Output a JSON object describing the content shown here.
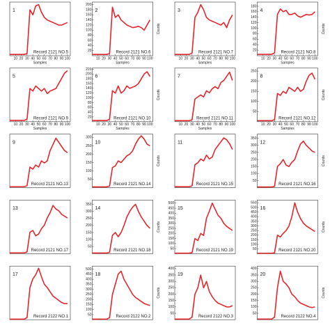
{
  "chart_data": [
    {
      "type": "line",
      "label": "1",
      "annotation": "Record 2121 NO.5",
      "xlabel": "Samples",
      "color": "#e3262b",
      "xlim": [
        0,
        105
      ],
      "xticks": [
        10,
        20,
        30,
        40,
        50,
        60,
        70,
        80,
        90,
        100
      ],
      "ylim": [
        0,
        210
      ],
      "x": [
        0,
        5,
        10,
        15,
        20,
        25,
        30,
        35,
        40,
        45,
        50,
        55,
        60,
        65,
        70,
        75,
        80,
        85,
        90,
        95,
        100
      ],
      "values": [
        5,
        5,
        5,
        5,
        5,
        5,
        8,
        180,
        160,
        195,
        200,
        170,
        150,
        140,
        135,
        130,
        125,
        120,
        120,
        125,
        130
      ]
    },
    {
      "type": "line",
      "label": "2",
      "annotation": "Record 2121 NO.6",
      "xlabel": "Samples",
      "ylabel": "Counts",
      "color": "#e3262b",
      "xlim": [
        0,
        105
      ],
      "xticks": [
        10,
        20,
        30,
        40,
        50,
        60,
        70,
        80,
        90,
        100
      ],
      "ylim": [
        0,
        210
      ],
      "yticks": [
        20,
        40,
        60,
        80,
        100,
        120,
        140,
        160,
        180,
        200
      ],
      "x": [
        0,
        5,
        10,
        15,
        20,
        25,
        30,
        35,
        40,
        45,
        50,
        55,
        60,
        65,
        70,
        75,
        80,
        85,
        90,
        95,
        100
      ],
      "values": [
        5,
        5,
        5,
        5,
        5,
        5,
        8,
        190,
        150,
        160,
        140,
        130,
        120,
        115,
        110,
        112,
        115,
        110,
        100,
        120,
        140
      ]
    },
    {
      "type": "line",
      "label": "3",
      "annotation": "Record 2121 NO.7",
      "xlabel": "Samples",
      "color": "#e3262b",
      "xlim": [
        0,
        105
      ],
      "xticks": [
        10,
        20,
        30,
        40,
        50,
        60,
        70,
        80,
        90,
        100
      ],
      "ylim": [
        0,
        210
      ],
      "x": [
        0,
        5,
        10,
        15,
        20,
        25,
        30,
        35,
        40,
        45,
        50,
        55,
        60,
        65,
        70,
        75,
        80,
        85,
        90,
        95,
        100
      ],
      "values": [
        5,
        5,
        5,
        5,
        5,
        5,
        10,
        150,
        170,
        200,
        180,
        150,
        140,
        135,
        130,
        125,
        120,
        130,
        110,
        140,
        160
      ]
    },
    {
      "type": "line",
      "label": "4",
      "annotation": "Record 2121 NO.8",
      "xlabel": "Samples",
      "ylabel": "Counts",
      "color": "#e3262b",
      "xlim": [
        0,
        105
      ],
      "xticks": [
        10,
        20,
        30,
        40,
        50,
        60,
        70,
        80,
        90,
        100
      ],
      "ylim": [
        0,
        195
      ],
      "yticks": [
        20,
        40,
        60,
        80,
        100,
        120,
        140,
        160,
        180
      ],
      "x": [
        0,
        5,
        10,
        15,
        20,
        25,
        30,
        35,
        40,
        45,
        50,
        55,
        60,
        65,
        70,
        75,
        80,
        85,
        90,
        95,
        100
      ],
      "values": [
        5,
        5,
        5,
        5,
        5,
        5,
        10,
        150,
        170,
        160,
        165,
        150,
        150,
        155,
        145,
        140,
        145,
        150,
        148,
        150,
        160
      ]
    },
    {
      "type": "line",
      "label": "5",
      "annotation": "Record 2121 NO.9",
      "xlabel": "Samples",
      "color": "#e3262b",
      "xlim": [
        0,
        105
      ],
      "xticks": [
        10,
        20,
        30,
        40,
        50,
        60,
        70,
        80,
        90,
        100
      ],
      "ylim": [
        0,
        210
      ],
      "x": [
        0,
        5,
        10,
        15,
        20,
        25,
        30,
        35,
        40,
        45,
        50,
        55,
        60,
        65,
        70,
        75,
        80,
        85,
        90,
        95,
        100
      ],
      "values": [
        5,
        5,
        5,
        5,
        5,
        5,
        10,
        130,
        120,
        140,
        130,
        120,
        130,
        110,
        120,
        125,
        130,
        150,
        170,
        190,
        200
      ]
    },
    {
      "type": "line",
      "label": "6",
      "annotation": "Record 2121 NO.10",
      "xlabel": "Samples",
      "ylabel": "Counts",
      "color": "#e3262b",
      "xlim": [
        0,
        105
      ],
      "xticks": [
        10,
        20,
        30,
        40,
        50,
        60,
        70,
        80,
        90,
        100
      ],
      "ylim": [
        0,
        225
      ],
      "yticks": [
        20,
        40,
        60,
        80,
        100,
        120,
        140,
        160,
        180,
        200,
        220
      ],
      "x": [
        0,
        5,
        10,
        15,
        20,
        25,
        30,
        35,
        40,
        45,
        50,
        55,
        60,
        65,
        70,
        75,
        80,
        85,
        90,
        95,
        100
      ],
      "values": [
        5,
        5,
        5,
        5,
        5,
        5,
        10,
        130,
        120,
        150,
        120,
        130,
        150,
        140,
        145,
        150,
        160,
        180,
        200,
        210,
        190
      ]
    },
    {
      "type": "line",
      "label": "7",
      "annotation": "Record 2121 NO.11",
      "xlabel": "Samples",
      "color": "#e3262b",
      "xlim": [
        0,
        105
      ],
      "xticks": [
        10,
        20,
        30,
        40,
        50,
        60,
        70,
        80,
        90,
        100
      ],
      "ylim": [
        0,
        260
      ],
      "x": [
        0,
        5,
        10,
        15,
        20,
        25,
        30,
        35,
        40,
        45,
        50,
        55,
        60,
        65,
        70,
        75,
        80,
        85,
        90,
        95,
        100
      ],
      "values": [
        5,
        5,
        5,
        5,
        5,
        5,
        10,
        110,
        120,
        130,
        120,
        150,
        140,
        160,
        170,
        160,
        190,
        200,
        220,
        240,
        200
      ]
    },
    {
      "type": "line",
      "label": "8",
      "annotation": "Record 2121 NO.12",
      "xlabel": "Samples",
      "ylabel": "Counts",
      "color": "#e3262b",
      "xlim": [
        0,
        105
      ],
      "xticks": [
        10,
        20,
        30,
        40,
        50,
        60,
        70,
        80,
        90,
        100
      ],
      "ylim": [
        0,
        265
      ],
      "yticks": [
        50,
        100,
        150,
        200,
        250
      ],
      "x": [
        0,
        5,
        10,
        15,
        20,
        25,
        30,
        35,
        40,
        45,
        50,
        55,
        60,
        65,
        70,
        75,
        80,
        85,
        90,
        95,
        100
      ],
      "values": [
        5,
        5,
        5,
        5,
        5,
        5,
        10,
        140,
        130,
        150,
        140,
        170,
        160,
        150,
        170,
        150,
        160,
        200,
        230,
        240,
        210
      ]
    },
    {
      "type": "line",
      "label": "9",
      "annotation": "Record 2121 NO.13",
      "color": "#e3262b",
      "xlim": [
        0,
        105
      ],
      "ylim": [
        0,
        260
      ],
      "x": [
        0,
        5,
        10,
        15,
        20,
        25,
        30,
        35,
        40,
        45,
        50,
        55,
        60,
        65,
        70,
        75,
        80,
        85,
        90,
        95,
        100
      ],
      "values": [
        5,
        5,
        5,
        5,
        5,
        5,
        10,
        100,
        90,
        110,
        100,
        130,
        120,
        130,
        180,
        210,
        240,
        220,
        200,
        180,
        170
      ]
    },
    {
      "type": "line",
      "label": "10",
      "annotation": "Record 2121 NO.14",
      "ylabel": "Counts",
      "color": "#e3262b",
      "xlim": [
        0,
        105
      ],
      "ylim": [
        0,
        320
      ],
      "yticks": [
        50,
        100,
        150,
        200,
        250,
        300
      ],
      "x": [
        0,
        5,
        10,
        15,
        20,
        25,
        30,
        35,
        40,
        45,
        50,
        55,
        60,
        65,
        70,
        75,
        80,
        85,
        90,
        95,
        100
      ],
      "values": [
        5,
        5,
        5,
        5,
        5,
        5,
        10,
        120,
        130,
        160,
        150,
        170,
        190,
        200,
        220,
        260,
        290,
        310,
        290,
        260,
        250
      ]
    },
    {
      "type": "line",
      "label": "11",
      "annotation": "Record 2121 NO.15",
      "color": "#e3262b",
      "xlim": [
        0,
        105
      ],
      "ylim": [
        0,
        280
      ],
      "x": [
        0,
        5,
        10,
        15,
        20,
        25,
        30,
        35,
        40,
        45,
        50,
        55,
        60,
        65,
        70,
        75,
        80,
        85,
        90,
        95,
        100
      ],
      "values": [
        5,
        5,
        5,
        5,
        5,
        5,
        10,
        120,
        130,
        150,
        140,
        170,
        150,
        160,
        200,
        220,
        240,
        260,
        250,
        230,
        200
      ]
    },
    {
      "type": "line",
      "label": "12",
      "annotation": "Record 2121 NO.16",
      "ylabel": "Counts",
      "color": "#e3262b",
      "xlim": [
        0,
        105
      ],
      "ylim": [
        0,
        380
      ],
      "yticks": [
        50,
        100,
        150,
        200,
        250,
        300,
        350
      ],
      "x": [
        0,
        5,
        10,
        15,
        20,
        25,
        30,
        35,
        40,
        45,
        50,
        55,
        60,
        65,
        70,
        75,
        80,
        85,
        90,
        95,
        100
      ],
      "values": [
        5,
        5,
        5,
        5,
        5,
        5,
        10,
        150,
        170,
        200,
        160,
        150,
        180,
        200,
        260,
        310,
        330,
        300,
        280,
        260,
        250
      ]
    },
    {
      "type": "line",
      "label": "13",
      "annotation": "Record 2121 NO.17",
      "color": "#e3262b",
      "xlim": [
        0,
        105
      ],
      "ylim": [
        0,
        300
      ],
      "x": [
        0,
        5,
        10,
        15,
        20,
        25,
        30,
        35,
        40,
        45,
        50,
        55,
        60,
        65,
        70,
        75,
        80,
        85,
        90,
        95,
        100
      ],
      "values": [
        5,
        5,
        5,
        5,
        5,
        5,
        10,
        120,
        130,
        100,
        110,
        140,
        160,
        200,
        230,
        270,
        250,
        240,
        220,
        210,
        200
      ]
    },
    {
      "type": "line",
      "label": "14",
      "annotation": "Record 2121 NO.18",
      "ylabel": "Counts",
      "color": "#e3262b",
      "xlim": [
        0,
        105
      ],
      "ylim": [
        0,
        380
      ],
      "yticks": [
        50,
        100,
        150,
        200,
        250,
        300,
        350
      ],
      "x": [
        0,
        5,
        10,
        15,
        20,
        25,
        30,
        35,
        40,
        45,
        50,
        55,
        60,
        65,
        70,
        75,
        80,
        85,
        90,
        95,
        100
      ],
      "values": [
        5,
        5,
        5,
        5,
        5,
        5,
        10,
        130,
        150,
        120,
        150,
        200,
        260,
        300,
        330,
        350,
        300,
        260,
        230,
        200,
        180
      ]
    },
    {
      "type": "line",
      "label": "15",
      "annotation": "Record 2121 NO.19",
      "color": "#e3262b",
      "xlim": [
        0,
        105
      ],
      "ylim": [
        0,
        530
      ],
      "yticks": [
        50,
        100,
        150,
        200,
        250,
        300,
        350,
        400,
        450,
        500
      ],
      "x": [
        0,
        5,
        10,
        15,
        20,
        25,
        30,
        35,
        40,
        45,
        50,
        55,
        60,
        65,
        70,
        75,
        80,
        85,
        90,
        95,
        100
      ],
      "values": [
        5,
        5,
        5,
        5,
        5,
        5,
        10,
        150,
        130,
        200,
        180,
        350,
        420,
        500,
        440,
        380,
        350,
        300,
        270,
        250,
        230
      ]
    },
    {
      "type": "line",
      "label": "16",
      "annotation": "Record 2121 NO.20",
      "ylabel": "Counts",
      "color": "#e3262b",
      "xlim": [
        0,
        105
      ],
      "ylim": [
        0,
        580
      ],
      "yticks": [
        50,
        100,
        150,
        200,
        250,
        300,
        350,
        400,
        450,
        500,
        550
      ],
      "x": [
        0,
        5,
        10,
        15,
        20,
        25,
        30,
        35,
        40,
        45,
        50,
        55,
        60,
        65,
        70,
        75,
        80,
        85,
        90,
        95,
        100
      ],
      "values": [
        5,
        5,
        5,
        5,
        5,
        5,
        10,
        200,
        180,
        220,
        250,
        300,
        400,
        550,
        450,
        380,
        330,
        300,
        280,
        260,
        240
      ]
    },
    {
      "type": "line",
      "label": "17",
      "annotation": "Record 2122 NO.1",
      "color": "#e3262b",
      "xlim": [
        0,
        105
      ],
      "ylim": [
        0,
        500
      ],
      "x": [
        0,
        5,
        10,
        15,
        20,
        25,
        30,
        35,
        40,
        45,
        50,
        55,
        60,
        65,
        70,
        75,
        80,
        85,
        90,
        95,
        100
      ],
      "values": [
        5,
        5,
        5,
        5,
        5,
        5,
        20,
        300,
        380,
        420,
        480,
        400,
        330,
        300,
        260,
        220,
        200,
        180,
        160,
        150,
        150
      ]
    },
    {
      "type": "line",
      "label": "18",
      "annotation": "Record 2122 NO.2",
      "ylabel": "Counts",
      "color": "#e3262b",
      "xlim": [
        0,
        105
      ],
      "ylim": [
        0,
        530
      ],
      "yticks": [
        50,
        100,
        150,
        200,
        250,
        300,
        350,
        400,
        450,
        500
      ],
      "x": [
        0,
        5,
        10,
        15,
        20,
        25,
        30,
        35,
        40,
        45,
        50,
        55,
        60,
        65,
        70,
        75,
        80,
        85,
        90,
        95,
        100
      ],
      "values": [
        5,
        5,
        5,
        5,
        5,
        5,
        20,
        250,
        350,
        450,
        480,
        400,
        350,
        300,
        250,
        220,
        200,
        180,
        160,
        150,
        140
      ]
    },
    {
      "type": "line",
      "label": "19",
      "annotation": "Record 2122 NO.3",
      "color": "#e3262b",
      "xlim": [
        0,
        105
      ],
      "ylim": [
        0,
        420
      ],
      "yticks": [
        50,
        100,
        150,
        200,
        250,
        300,
        350,
        400
      ],
      "x": [
        0,
        5,
        10,
        15,
        20,
        25,
        30,
        35,
        40,
        45,
        50,
        55,
        60,
        65,
        70,
        75,
        80,
        85,
        90,
        95,
        100
      ],
      "values": [
        5,
        5,
        5,
        5,
        5,
        5,
        20,
        200,
        250,
        350,
        250,
        300,
        220,
        180,
        150,
        130,
        120,
        110,
        100,
        100,
        110
      ]
    },
    {
      "type": "line",
      "label": "20",
      "annotation": "Record 2122 NO.4",
      "ylabel": "Counts",
      "color": "#e3262b",
      "xlim": [
        0,
        105
      ],
      "ylim": [
        0,
        420
      ],
      "yticks": [
        50,
        100,
        150,
        200,
        250,
        300,
        350,
        400
      ],
      "x": [
        0,
        5,
        10,
        15,
        20,
        25,
        30,
        35,
        40,
        45,
        50,
        55,
        60,
        65,
        70,
        75,
        80,
        85,
        90,
        95,
        100
      ],
      "values": [
        5,
        5,
        5,
        5,
        5,
        5,
        20,
        250,
        380,
        300,
        280,
        250,
        200,
        180,
        150,
        130,
        120,
        110,
        100,
        95,
        100
      ]
    }
  ]
}
